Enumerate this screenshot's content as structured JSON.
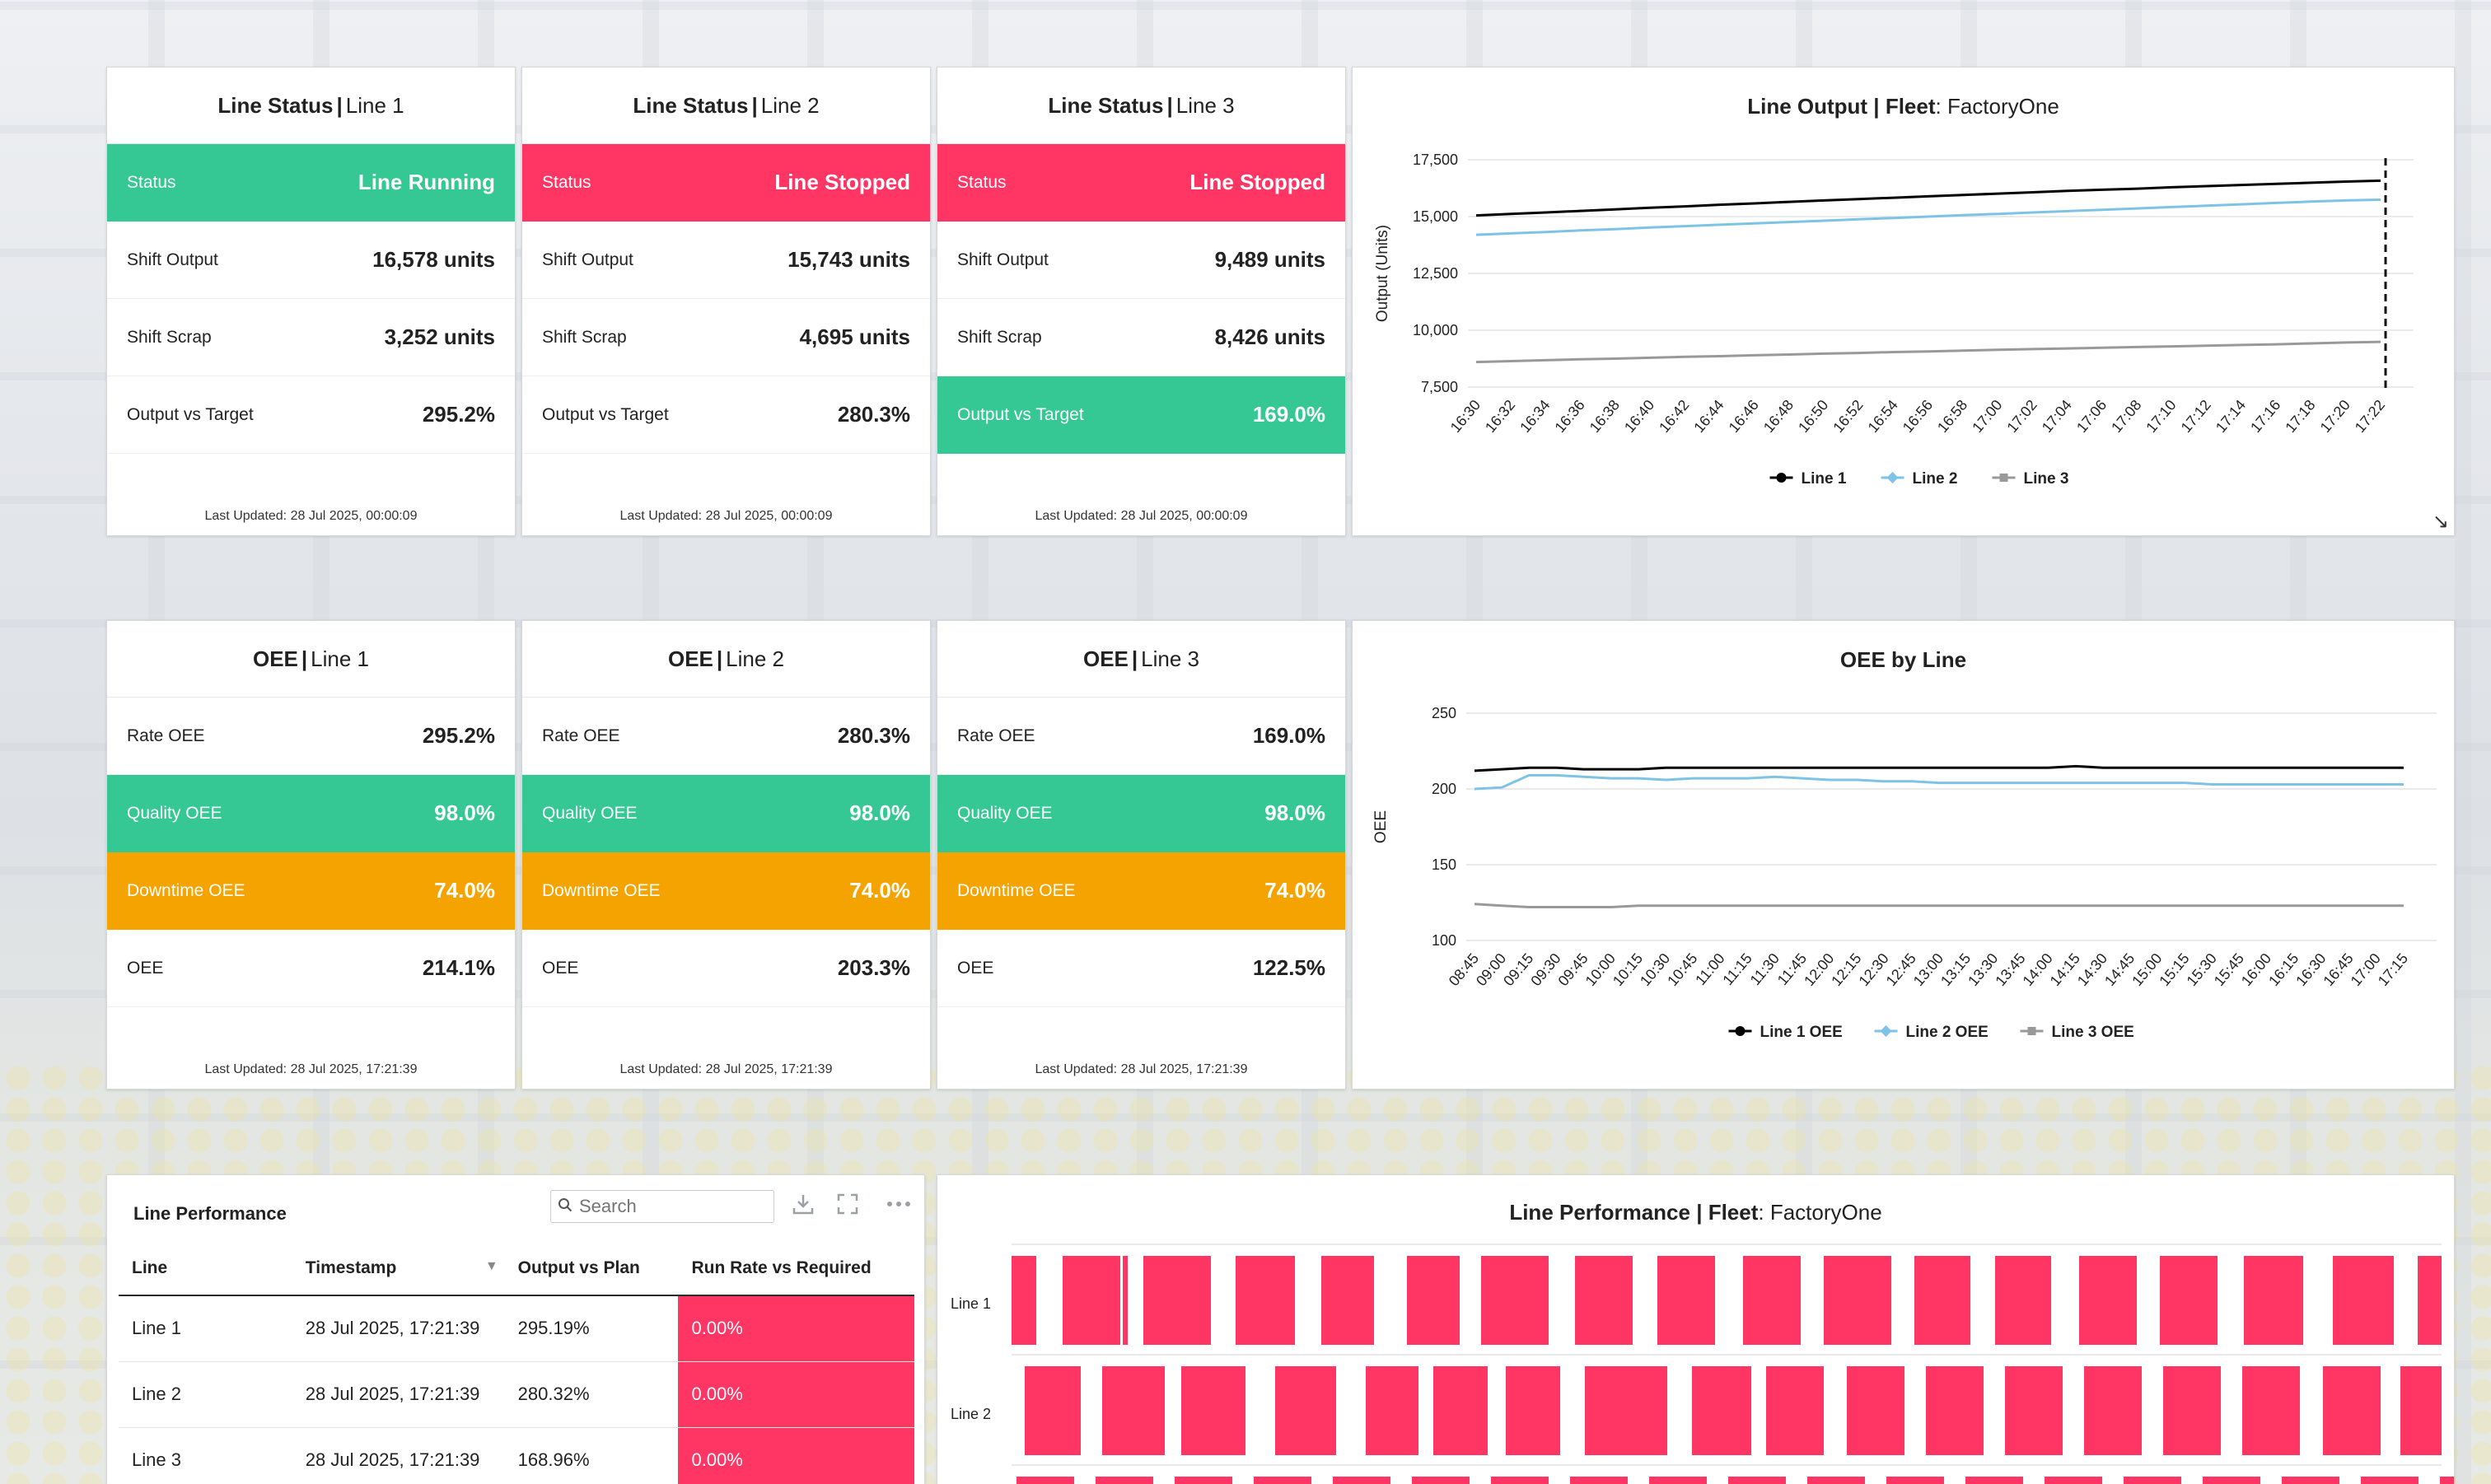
{
  "status_cards": [
    {
      "title_bold": "Line Status",
      "title_rest": "Line 1",
      "rows": [
        {
          "label": "Status",
          "value": "Line Running",
          "style": "green"
        },
        {
          "label": "Shift Output",
          "value": "16,578 units",
          "style": ""
        },
        {
          "label": "Shift Scrap",
          "value": "3,252 units",
          "style": ""
        },
        {
          "label": "Output vs Target",
          "value": "295.2%",
          "style": ""
        }
      ],
      "footer": "Last Updated: 28 Jul 2025, 00:00:09"
    },
    {
      "title_bold": "Line Status",
      "title_rest": "Line 2",
      "rows": [
        {
          "label": "Status",
          "value": "Line Stopped",
          "style": "red"
        },
        {
          "label": "Shift Output",
          "value": "15,743 units",
          "style": ""
        },
        {
          "label": "Shift Scrap",
          "value": "4,695 units",
          "style": ""
        },
        {
          "label": "Output vs Target",
          "value": "280.3%",
          "style": ""
        }
      ],
      "footer": "Last Updated: 28 Jul 2025, 00:00:09"
    },
    {
      "title_bold": "Line Status",
      "title_rest": "Line 3",
      "rows": [
        {
          "label": "Status",
          "value": "Line Stopped",
          "style": "red"
        },
        {
          "label": "Shift Output",
          "value": "9,489 units",
          "style": ""
        },
        {
          "label": "Shift Scrap",
          "value": "8,426 units",
          "style": ""
        },
        {
          "label": "Output vs Target",
          "value": "169.0%",
          "style": "green"
        }
      ],
      "footer": "Last Updated: 28 Jul 2025, 00:00:09"
    }
  ],
  "oee_cards": [
    {
      "title_bold": "OEE",
      "title_rest": "Line 1",
      "rows": [
        {
          "label": "Rate OEE",
          "value": "295.2%",
          "style": ""
        },
        {
          "label": "Quality OEE",
          "value": "98.0%",
          "style": "green"
        },
        {
          "label": "Downtime OEE",
          "value": "74.0%",
          "style": "amber"
        },
        {
          "label": "OEE",
          "value": "214.1%",
          "style": ""
        }
      ],
      "footer": "Last Updated: 28 Jul 2025, 17:21:39"
    },
    {
      "title_bold": "OEE",
      "title_rest": "Line 2",
      "rows": [
        {
          "label": "Rate OEE",
          "value": "280.3%",
          "style": ""
        },
        {
          "label": "Quality OEE",
          "value": "98.0%",
          "style": "green"
        },
        {
          "label": "Downtime OEE",
          "value": "74.0%",
          "style": "amber"
        },
        {
          "label": "OEE",
          "value": "203.3%",
          "style": ""
        }
      ],
      "footer": "Last Updated: 28 Jul 2025, 17:21:39"
    },
    {
      "title_bold": "OEE",
      "title_rest": "Line 3",
      "rows": [
        {
          "label": "Rate OEE",
          "value": "169.0%",
          "style": ""
        },
        {
          "label": "Quality OEE",
          "value": "98.0%",
          "style": "green"
        },
        {
          "label": "Downtime OEE",
          "value": "74.0%",
          "style": "amber"
        },
        {
          "label": "OEE",
          "value": "122.5%",
          "style": ""
        }
      ],
      "footer": "Last Updated: 28 Jul 2025, 17:21:39"
    }
  ],
  "output_chart": {
    "title_bold": "Line Output",
    "title_mid": "Fleet",
    "title_rest": "FactoryOne"
  },
  "oee_chart": {
    "title": "OEE by Line"
  },
  "performance_table": {
    "title": "Line Performance",
    "search_placeholder": "Search",
    "columns": [
      "Line",
      "Timestamp",
      "Output vs Plan",
      "Run Rate vs Required"
    ],
    "rows": [
      {
        "line": "Line 1",
        "timestamp": "28 Jul 2025, 17:21:39",
        "output_vs_plan": "295.19%",
        "run_rate": "0.00%"
      },
      {
        "line": "Line 2",
        "timestamp": "28 Jul 2025, 17:21:39",
        "output_vs_plan": "280.32%",
        "run_rate": "0.00%"
      },
      {
        "line": "Line 3",
        "timestamp": "28 Jul 2025, 17:21:39",
        "output_vs_plan": "168.96%",
        "run_rate": "0.00%"
      }
    ]
  },
  "perf_timeline": {
    "title_bold": "Line Performance",
    "title_mid": "Fleet",
    "title_rest": "FactoryOne",
    "rows": [
      "Line 1",
      "Line 2"
    ]
  },
  "colors": {
    "running": "#35c895",
    "stopped": "#ff3564",
    "downtime": "#f5a300",
    "line1": "#000000",
    "line2": "#7ec3e6",
    "line3": "#999999"
  },
  "chart_data": [
    {
      "type": "line",
      "title": "Line Output | Fleet: FactoryOne",
      "xlabel": "",
      "ylabel": "Output (Units)",
      "ylim": [
        7500,
        17500
      ],
      "yticks": [
        "7,500",
        "10,000",
        "12,500",
        "15,000",
        "17,500"
      ],
      "x": [
        "16:30",
        "16:32",
        "16:34",
        "16:36",
        "16:38",
        "16:40",
        "16:42",
        "16:44",
        "16:46",
        "16:48",
        "16:50",
        "16:52",
        "16:54",
        "16:56",
        "16:58",
        "17:00",
        "17:02",
        "17:04",
        "17:06",
        "17:08",
        "17:10",
        "17:12",
        "17:14",
        "17:16",
        "17:18",
        "17:20",
        "17:22"
      ],
      "series": [
        {
          "name": "Line 1",
          "color": "#000000",
          "values": [
            15050,
            15120,
            15180,
            15250,
            15320,
            15390,
            15450,
            15520,
            15580,
            15650,
            15710,
            15770,
            15830,
            15890,
            15950,
            16010,
            16070,
            16130,
            16180,
            16230,
            16290,
            16340,
            16390,
            16440,
            16490,
            16540,
            16578
          ]
        },
        {
          "name": "Line 2",
          "color": "#7ec3e6",
          "values": [
            14200,
            14260,
            14320,
            14390,
            14450,
            14520,
            14580,
            14640,
            14700,
            14760,
            14820,
            14880,
            14940,
            15000,
            15060,
            15120,
            15180,
            15240,
            15300,
            15360,
            15420,
            15480,
            15540,
            15600,
            15660,
            15710,
            15743
          ]
        },
        {
          "name": "Line 3",
          "color": "#999999",
          "values": [
            8600,
            8640,
            8680,
            8720,
            8750,
            8790,
            8830,
            8860,
            8900,
            8930,
            8970,
            9000,
            9040,
            9070,
            9100,
            9140,
            9170,
            9200,
            9230,
            9260,
            9290,
            9320,
            9350,
            9380,
            9420,
            9460,
            9489
          ]
        }
      ],
      "legend": "bottom",
      "annotation": "dashed vertical line at 17:22"
    },
    {
      "type": "line",
      "title": "OEE by Line",
      "xlabel": "",
      "ylabel": "OEE",
      "ylim": [
        100,
        250
      ],
      "yticks": [
        "100",
        "150",
        "200",
        "250"
      ],
      "x": [
        "08:45",
        "09:00",
        "09:15",
        "09:30",
        "09:45",
        "10:00",
        "10:15",
        "10:30",
        "10:45",
        "11:00",
        "11:15",
        "11:30",
        "11:45",
        "12:00",
        "12:15",
        "12:30",
        "12:45",
        "13:00",
        "13:15",
        "13:30",
        "13:45",
        "14:00",
        "14:15",
        "14:30",
        "14:45",
        "15:00",
        "15:15",
        "15:30",
        "15:45",
        "16:00",
        "16:15",
        "16:30",
        "16:45",
        "17:00",
        "17:15"
      ],
      "series": [
        {
          "name": "Line 1 OEE",
          "color": "#000000",
          "values": [
            212,
            213,
            214,
            214,
            213,
            213,
            213,
            214,
            214,
            214,
            214,
            214,
            214,
            214,
            214,
            214,
            214,
            214,
            214,
            214,
            214,
            214,
            215,
            214,
            214,
            214,
            214,
            214,
            214,
            214,
            214,
            214,
            214,
            214,
            214
          ]
        },
        {
          "name": "Line 2 OEE",
          "color": "#7ec3e6",
          "values": [
            200,
            201,
            209,
            209,
            208,
            207,
            207,
            206,
            207,
            207,
            207,
            208,
            207,
            206,
            206,
            205,
            205,
            204,
            204,
            204,
            204,
            204,
            204,
            204,
            204,
            204,
            204,
            203,
            203,
            203,
            203,
            203,
            203,
            203,
            203
          ]
        },
        {
          "name": "Line 3 OEE",
          "color": "#999999",
          "values": [
            124,
            123,
            122,
            122,
            122,
            122,
            123,
            123,
            123,
            123,
            123,
            123,
            123,
            123,
            123,
            123,
            123,
            123,
            123,
            123,
            123,
            123,
            123,
            123,
            123,
            123,
            123,
            123,
            123,
            123,
            123,
            123,
            123,
            123,
            123
          ]
        }
      ],
      "legend": "bottom"
    }
  ]
}
